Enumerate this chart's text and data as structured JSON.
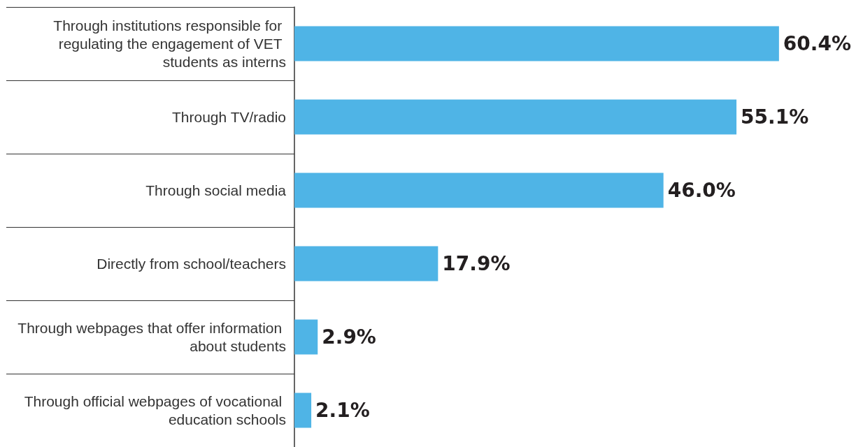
{
  "chart_data": {
    "type": "bar",
    "orientation": "horizontal",
    "categories": [
      "Through institutions responsible for regulating the engagement of VET students as interns",
      "Through TV/radio",
      "Through social media",
      "Directly from school/teachers",
      "Through webpages that offer information about students",
      "Through official webpages of vocational education schools"
    ],
    "values": [
      60.4,
      55.1,
      46.0,
      17.9,
      2.9,
      2.1
    ],
    "value_labels": [
      "60.4%",
      "55.1%",
      "46.0%",
      "17.9%",
      "2.9%",
      "2.1%"
    ],
    "color": "#4fb4e6"
  }
}
